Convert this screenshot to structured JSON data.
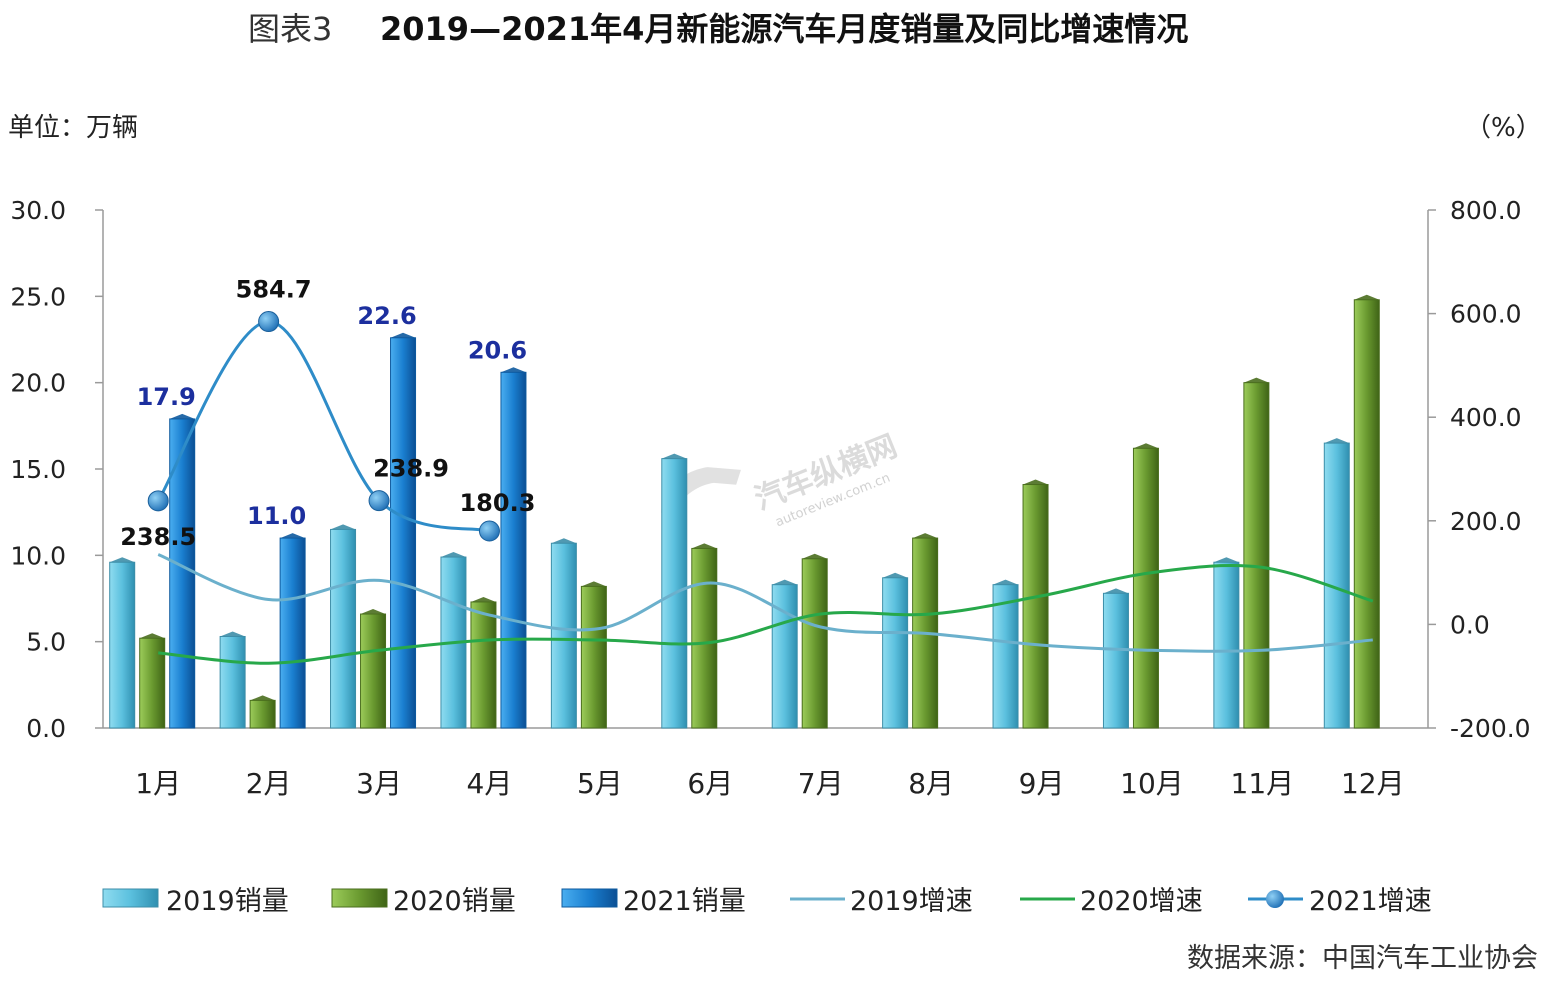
{
  "title_prefix": "图表3",
  "title": "2019—2021年4月新能源汽车月度销量及同比增速情况",
  "left_unit": "单位：万辆",
  "right_unit": "（%）",
  "source": "数据来源：中国汽车工业协会",
  "watermark": {
    "name": "汽车纵横网",
    "url": "autoreview.com.cn"
  },
  "colors": {
    "bar_2019": "#5bc0de",
    "bar_2020": "#6a9a30",
    "bar_2021": "#1a7fd0",
    "line_2019": "#6bb0cc",
    "line_2020": "#27a84a",
    "line_2021": "#2e8cc8"
  },
  "chart_data": {
    "type": "bar",
    "categories": [
      "1月",
      "2月",
      "3月",
      "4月",
      "5月",
      "6月",
      "7月",
      "8月",
      "9月",
      "10月",
      "11月",
      "12月"
    ],
    "y_left": {
      "min": 0,
      "max": 30,
      "ticks": [
        "0.0",
        "5.0",
        "10.0",
        "15.0",
        "20.0",
        "25.0",
        "30.0"
      ]
    },
    "y_right": {
      "min": -200,
      "max": 800,
      "ticks": [
        "-200.0",
        "0.0",
        "200.0",
        "400.0",
        "600.0",
        "800.0"
      ]
    },
    "bar_series": [
      {
        "name": "2019销量",
        "values": [
          9.6,
          5.3,
          11.5,
          9.9,
          10.7,
          15.6,
          8.3,
          8.7,
          8.3,
          7.8,
          9.6,
          16.5
        ]
      },
      {
        "name": "2020销量",
        "values": [
          5.2,
          1.6,
          6.6,
          7.3,
          8.2,
          10.4,
          9.8,
          11.0,
          14.1,
          16.2,
          20.0,
          24.8
        ]
      },
      {
        "name": "2021销量",
        "values": [
          17.9,
          11.0,
          22.6,
          20.6,
          null,
          null,
          null,
          null,
          null,
          null,
          null,
          null
        ],
        "labels": [
          "17.9",
          "11.0",
          "22.6",
          "20.6"
        ]
      }
    ],
    "line_series": [
      {
        "name": "2019增速",
        "values": [
          135,
          48,
          85,
          18,
          -8,
          80,
          -5,
          -18,
          -40,
          -50,
          -50,
          -30
        ]
      },
      {
        "name": "2020增速",
        "values": [
          -55,
          -75,
          -50,
          -30,
          -30,
          -35,
          20,
          20,
          55,
          100,
          110,
          45
        ]
      },
      {
        "name": "2021增速",
        "values": [
          238.5,
          584.7,
          238.9,
          180.3,
          null,
          null,
          null,
          null,
          null,
          null,
          null,
          null
        ],
        "labels": [
          "238.5",
          "584.7",
          "238.9",
          "180.3"
        ]
      }
    ],
    "legend": [
      "2019销量",
      "2020销量",
      "2021销量",
      "2019增速",
      "2020增速",
      "2021增速"
    ],
    "legend_position": "bottom"
  }
}
